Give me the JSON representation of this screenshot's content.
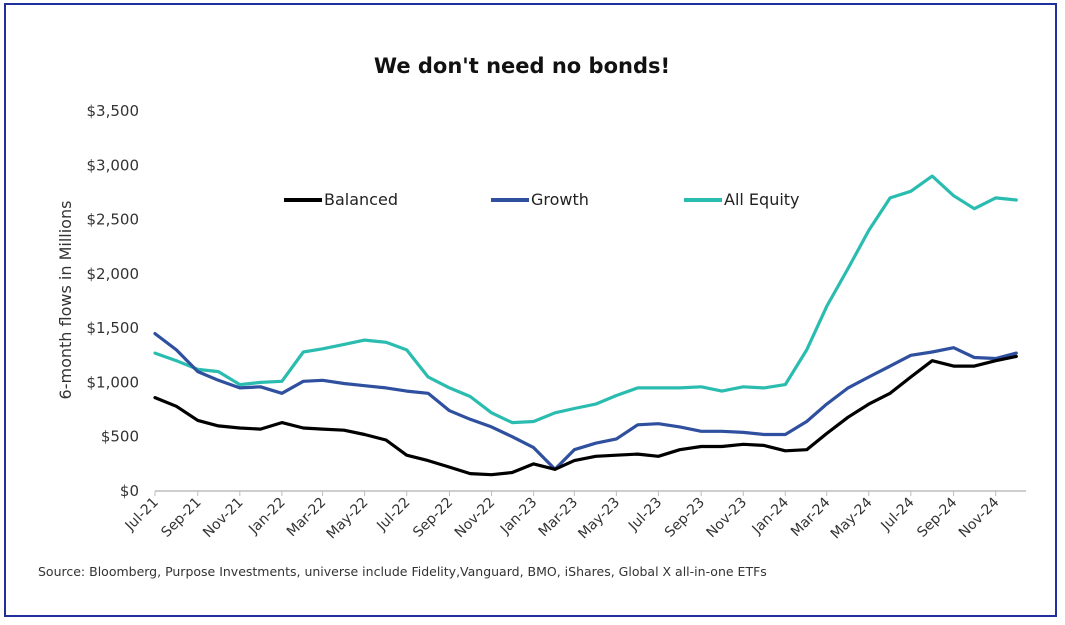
{
  "chart_data": {
    "type": "line",
    "title": "We don't need no bonds!",
    "ylabel": "6-month flows in Millions",
    "xlabel": "",
    "ylim": [
      0,
      3500
    ],
    "xlim": [
      "2021-07-01",
      "2024-12-15"
    ],
    "yticks": [
      0,
      500,
      1000,
      1500,
      2000,
      2500,
      3000,
      3500
    ],
    "ytick_labels": [
      "$0",
      "$500",
      "$1,000",
      "$1,500",
      "$2,000",
      "$2,500",
      "$3,000",
      "$3,500"
    ],
    "xtick_labels": [
      "Jul-21",
      "Sep-21",
      "Nov-21",
      "Jan-22",
      "Mar-22",
      "May-22",
      "Jul-22",
      "Sep-22",
      "Nov-22",
      "Jan-23",
      "Mar-23",
      "May-23",
      "Jul-23",
      "Sep-23",
      "Nov-23",
      "Jan-24",
      "Mar-24",
      "May-24",
      "Jul-24",
      "Sep-24",
      "Nov-24"
    ],
    "xtick_dates": [
      "2021-07-01",
      "2021-09-01",
      "2021-11-01",
      "2022-01-01",
      "2022-03-01",
      "2022-05-01",
      "2022-07-01",
      "2022-09-01",
      "2022-11-01",
      "2023-01-01",
      "2023-03-01",
      "2023-05-01",
      "2023-07-01",
      "2023-09-01",
      "2023-11-01",
      "2024-01-01",
      "2024-03-01",
      "2024-05-01",
      "2024-07-01",
      "2024-09-01",
      "2024-11-01"
    ],
    "legend_position": "top-center",
    "grid": false,
    "x": [
      "2021-07-01",
      "2021-08-01",
      "2021-09-01",
      "2021-10-01",
      "2021-11-01",
      "2021-12-01",
      "2022-01-01",
      "2022-02-01",
      "2022-03-01",
      "2022-04-01",
      "2022-05-01",
      "2022-06-01",
      "2022-07-01",
      "2022-08-01",
      "2022-09-01",
      "2022-10-01",
      "2022-11-01",
      "2022-12-01",
      "2023-01-01",
      "2023-02-01",
      "2023-03-01",
      "2023-04-01",
      "2023-05-01",
      "2023-06-01",
      "2023-07-01",
      "2023-08-01",
      "2023-09-01",
      "2023-10-01",
      "2023-11-01",
      "2023-12-01",
      "2024-01-01",
      "2024-02-01",
      "2024-03-01",
      "2024-04-01",
      "2024-05-01",
      "2024-06-01",
      "2024-07-01",
      "2024-08-01",
      "2024-09-01",
      "2024-10-01",
      "2024-11-01",
      "2024-12-01"
    ],
    "series": [
      {
        "name": "Balanced",
        "color": "#000000",
        "values": [
          860,
          780,
          650,
          600,
          580,
          570,
          630,
          580,
          570,
          560,
          520,
          470,
          330,
          280,
          220,
          160,
          150,
          170,
          250,
          200,
          280,
          320,
          330,
          340,
          320,
          380,
          410,
          410,
          430,
          420,
          370,
          380,
          530,
          680,
          800,
          900,
          1050,
          1200,
          1150,
          1150,
          1200,
          1240
        ]
      },
      {
        "name": "Growth",
        "color": "#2f4f9f",
        "values": [
          1450,
          1300,
          1100,
          1020,
          950,
          960,
          900,
          1010,
          1020,
          990,
          970,
          950,
          920,
          900,
          740,
          660,
          590,
          500,
          400,
          200,
          380,
          440,
          480,
          610,
          620,
          590,
          550,
          550,
          540,
          520,
          520,
          640,
          800,
          950,
          1050,
          1150,
          1250,
          1280,
          1320,
          1230,
          1220,
          1270
        ]
      },
      {
        "name": "All Equity",
        "color": "#2bbcb0",
        "values": [
          1270,
          1200,
          1120,
          1100,
          980,
          1000,
          1010,
          1280,
          1310,
          1350,
          1390,
          1370,
          1300,
          1050,
          950,
          870,
          720,
          630,
          640,
          720,
          760,
          800,
          880,
          950,
          950,
          950,
          960,
          920,
          960,
          950,
          980,
          1300,
          1700,
          2050,
          2400,
          2700,
          2760,
          2900,
          2720,
          2600,
          2700,
          2680
        ]
      }
    ]
  },
  "source_note": "Source: Bloomberg, Purpose Investments, universe include Fidelity,Vanguard, BMO, iShares, Global X all-in-one ETFs"
}
